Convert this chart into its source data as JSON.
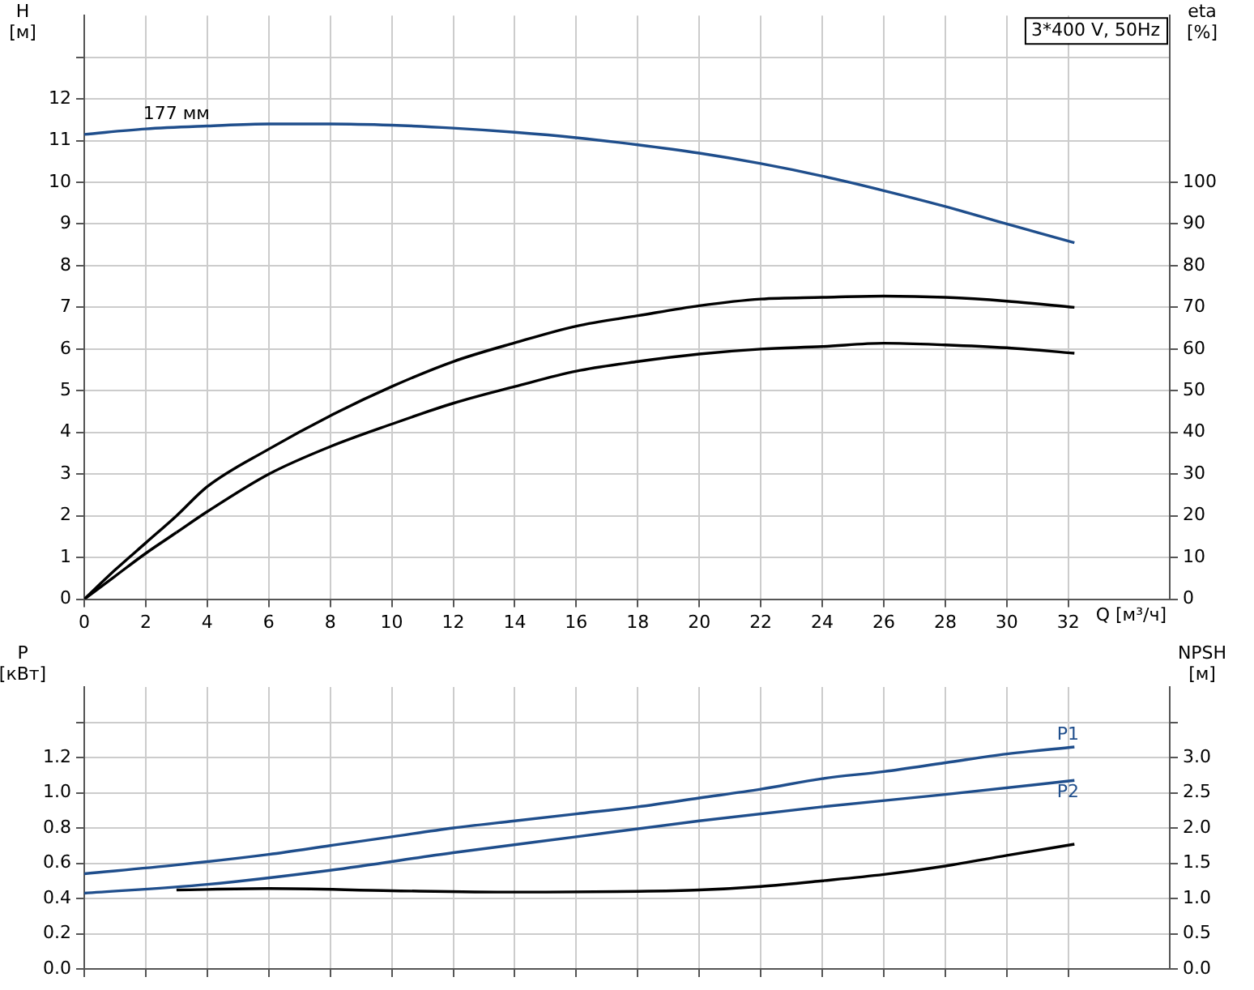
{
  "chart_data": [
    {
      "type": "line",
      "title": "3*400 V, 50Hz",
      "xlabel": "Q [м³/ч]",
      "ylabel": "H [м]",
      "y2label": "eta [%]",
      "x": [
        0,
        1,
        2,
        3,
        4,
        6,
        8,
        10,
        12,
        14,
        16,
        18,
        20,
        22,
        24,
        26,
        28,
        30,
        32.2
      ],
      "xlim": [
        0,
        35.3
      ],
      "xticks": [
        0,
        2,
        4,
        6,
        8,
        10,
        12,
        14,
        16,
        18,
        20,
        22,
        24,
        26,
        28,
        30,
        32
      ],
      "ylim": [
        0,
        14
      ],
      "yticks": [
        0,
        1,
        2,
        3,
        4,
        5,
        6,
        7,
        8,
        9,
        10,
        11,
        12,
        {
          "value": 13,
          "label": null
        }
      ],
      "y2lim": [
        0,
        140
      ],
      "y2ticks": [
        0,
        10,
        20,
        30,
        40,
        50,
        60,
        70,
        80,
        90,
        100
      ],
      "grid": true,
      "legend": false,
      "marker": "none",
      "line_style": "solid",
      "annotations": [
        {
          "text": "177 мм",
          "x": 3,
          "y": 11.3
        }
      ],
      "series": [
        {
          "color": "#1f4e8c",
          "x": [
            0,
            2,
            4,
            6,
            8,
            10,
            12,
            14,
            16,
            18,
            20,
            22,
            24,
            26,
            28,
            30,
            32.2
          ],
          "values": [
            11.15,
            11.28,
            11.35,
            11.4,
            11.4,
            11.37,
            11.3,
            11.2,
            11.07,
            10.9,
            10.7,
            10.45,
            10.15,
            9.8,
            9.42,
            9.0,
            8.55
          ]
        },
        {
          "color": "#000000",
          "axis": "y2",
          "values": [
            0,
            7,
            13.5,
            20,
            27,
            36,
            44,
            51,
            57,
            61.5,
            65.5,
            68,
            70.4,
            72,
            72.4,
            72.7,
            72.4,
            71.5,
            70
          ]
        },
        {
          "color": "#000000",
          "axis": "y2",
          "x": [
            0,
            1,
            2,
            3
          ],
          "values": [
            0,
            5.5,
            11,
            16
          ]
        },
        {
          "color": "#000000",
          "axis": "y2",
          "x": [
            3,
            4,
            6,
            8,
            10,
            12,
            14,
            16,
            18,
            20,
            22,
            24,
            26,
            28,
            30,
            32.2
          ],
          "values": [
            16,
            21,
            30,
            36.6,
            42,
            47,
            51,
            54.7,
            57,
            58.8,
            60,
            60.6,
            61.4,
            61,
            60.3,
            59
          ]
        }
      ]
    },
    {
      "type": "line",
      "ylabel": "P [кВт]",
      "y2label": "NPSH [м]",
      "xlim": [
        0,
        35.3
      ],
      "xticks": [
        0,
        2,
        4,
        6,
        8,
        10,
        12,
        14,
        16,
        18,
        20,
        22,
        24,
        26,
        28,
        30,
        32
      ],
      "tick_labels": "y",
      "ylim": [
        0,
        1.6
      ],
      "yticks": [
        {
          "value": 0,
          "label": "0.0"
        },
        0.2,
        0.4,
        0.6,
        0.8,
        {
          "value": 1,
          "label": "1.0"
        },
        1.2,
        {
          "value": 1.4,
          "label": null
        }
      ],
      "y2lim": [
        0,
        4
      ],
      "y2ticks": [
        {
          "value": 0,
          "label": "0.0"
        },
        0.5,
        {
          "value": 1,
          "label": "1.0"
        },
        1.5,
        {
          "value": 2,
          "label": "2.0"
        },
        2.5,
        {
          "value": 3,
          "label": "3.0"
        },
        {
          "value": 3.5,
          "label": null
        }
      ],
      "grid": true,
      "legend": false,
      "marker": "none",
      "line_style": "solid",
      "series": [
        {
          "name": "P1",
          "color": "#1f4e8c",
          "x": [
            0,
            3,
            6,
            8,
            10,
            12,
            14,
            16,
            18,
            20,
            22,
            24,
            26,
            28,
            30,
            32.2
          ],
          "values": [
            0.54,
            0.59,
            0.65,
            0.7,
            0.75,
            0.8,
            0.84,
            0.88,
            0.92,
            0.97,
            1.02,
            1.08,
            1.12,
            1.17,
            1.22,
            1.26
          ]
        },
        {
          "name": "P2",
          "color": "#1f4e8c",
          "x": [
            0,
            4,
            8,
            12,
            16,
            20,
            24,
            28,
            32.2
          ],
          "values": [
            0.43,
            0.48,
            0.56,
            0.66,
            0.75,
            0.84,
            0.92,
            0.99,
            1.07
          ]
        },
        {
          "color": "#000000",
          "axis": "y2",
          "x": [
            3,
            6,
            10,
            14,
            18,
            20,
            22,
            24,
            26,
            28,
            30,
            32.2
          ],
          "values": [
            1.12,
            1.14,
            1.11,
            1.09,
            1.1,
            1.12,
            1.17,
            1.25,
            1.34,
            1.46,
            1.61,
            1.77
          ]
        }
      ]
    }
  ]
}
